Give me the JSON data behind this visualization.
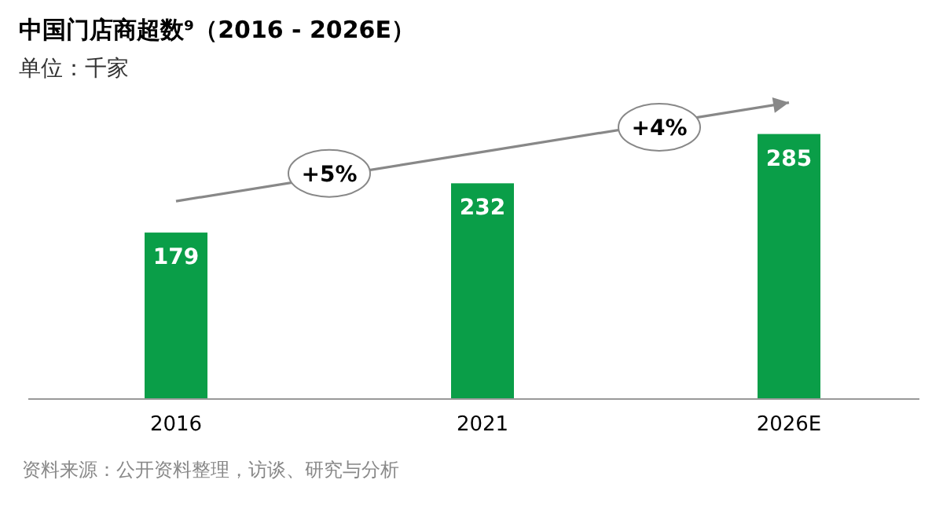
{
  "chart_data": {
    "type": "bar",
    "title": "中国门店商超数⁹（2016 - 2026E）",
    "subtitle": "单位：千家",
    "categories": [
      "2016",
      "2021",
      "2026E"
    ],
    "values": [
      179,
      232,
      285
    ],
    "color": "#0a9e48",
    "data_labels": true,
    "annotations": [
      "+5%",
      "+4%",
      "资料来源：公开资料整理，访谈、研究与分析"
    ]
  }
}
